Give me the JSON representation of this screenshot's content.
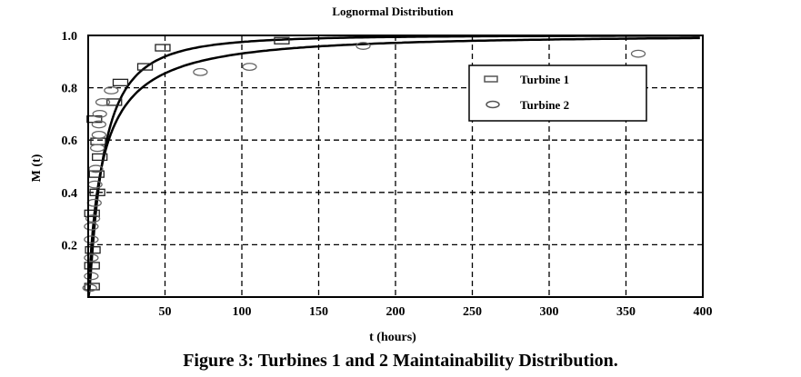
{
  "caption": "Figure 3: Turbines 1 and 2 Maintainability Distribution.",
  "chart_data": {
    "type": "scatter",
    "title": "Lognormal Distribution",
    "xlabel": "t (hours)",
    "ylabel": "M (t)",
    "xlim": [
      0,
      400
    ],
    "ylim": [
      0,
      1.0
    ],
    "xticks": [
      50,
      100,
      150,
      200,
      250,
      300,
      350,
      400
    ],
    "xtick_labels": [
      "50",
      "100",
      "150",
      "200",
      "250",
      "300",
      "350",
      "400"
    ],
    "yticks": [
      0.2,
      0.4,
      0.6,
      0.8,
      1.0
    ],
    "ytick_labels": [
      "0.2",
      "0.4",
      "0.6",
      "0.8",
      "1.0"
    ],
    "grid": true,
    "legend_position": "top-right",
    "series": [
      {
        "name": "Turbine 1",
        "marker": "square",
        "points": [
          [
            2.5,
            0.04
          ],
          [
            2.5,
            0.12
          ],
          [
            3,
            0.18
          ],
          [
            2.5,
            0.32
          ],
          [
            6,
            0.4
          ],
          [
            5.5,
            0.47
          ],
          [
            7.5,
            0.535
          ],
          [
            6.5,
            0.595
          ],
          [
            4,
            0.68
          ],
          [
            17,
            0.745
          ],
          [
            21,
            0.82
          ],
          [
            37,
            0.88
          ],
          [
            48.5,
            0.953
          ],
          [
            126,
            0.98
          ]
        ],
        "fit": {
          "model": "lognormal",
          "median": 8.8,
          "sigma": 1.24
        }
      },
      {
        "name": "Turbine 2",
        "marker": "ellipse",
        "points": [
          [
            1,
            0.035
          ],
          [
            2,
            0.08
          ],
          [
            2,
            0.15
          ],
          [
            2,
            0.22
          ],
          [
            2,
            0.27
          ],
          [
            3,
            0.3
          ],
          [
            4,
            0.36
          ],
          [
            4.5,
            0.43
          ],
          [
            5,
            0.49
          ],
          [
            6,
            0.57
          ],
          [
            7,
            0.62
          ],
          [
            7,
            0.66
          ],
          [
            7.5,
            0.7
          ],
          [
            9.5,
            0.745
          ],
          [
            15,
            0.79
          ],
          [
            73,
            0.86
          ],
          [
            105,
            0.88
          ],
          [
            179,
            0.96
          ],
          [
            358,
            0.93
          ]
        ],
        "fit": {
          "model": "lognormal",
          "median": 8.8,
          "sigma": 1.64
        }
      }
    ]
  }
}
